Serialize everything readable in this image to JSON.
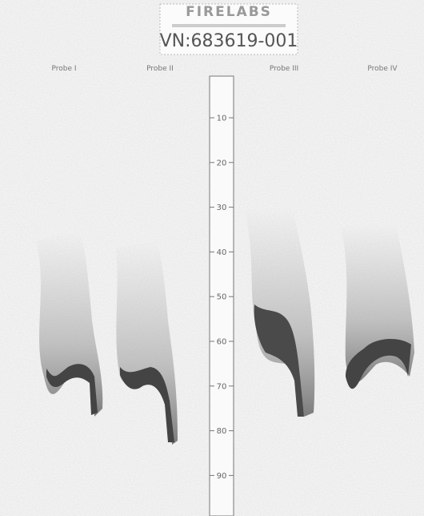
{
  "header": {
    "title": "FIRELABS",
    "id": "VN:683619-001"
  },
  "probes": [
    "Probe I",
    "Probe II",
    "Probe III",
    "Probe IV"
  ],
  "ruler": {
    "ticks": [
      10,
      20,
      30,
      40,
      50,
      60,
      70,
      80,
      90
    ]
  }
}
